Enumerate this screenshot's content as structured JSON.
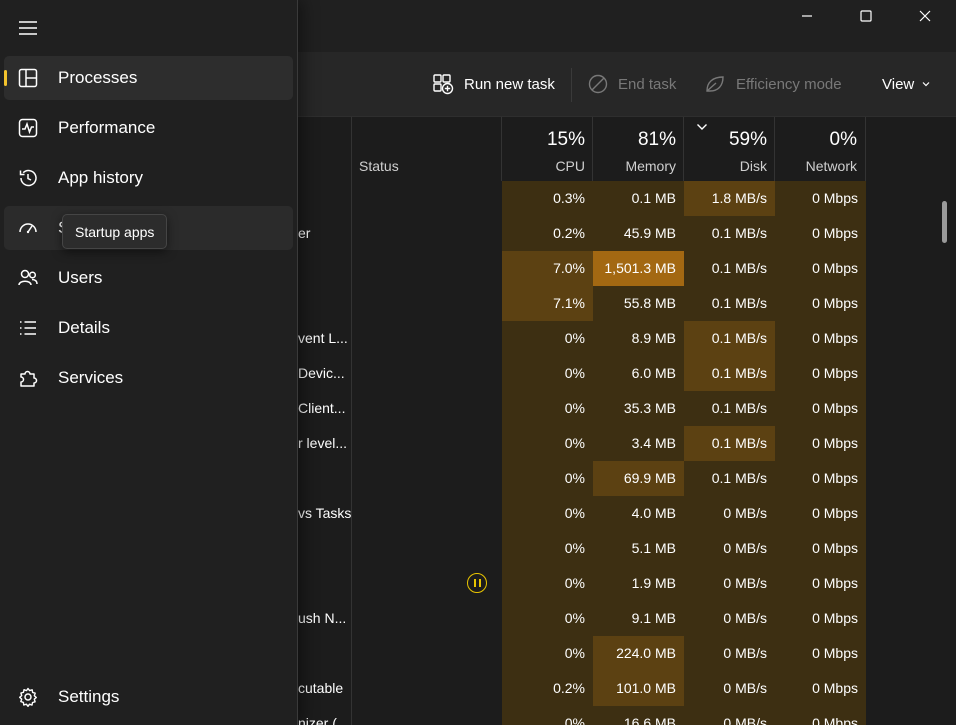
{
  "window": {
    "minimize_icon": "minimize-icon",
    "maximize_icon": "maximize-icon",
    "close_icon": "close-icon"
  },
  "toolbar": {
    "run_new_task": "Run new task",
    "end_task": "End task",
    "efficiency_mode": "Efficiency mode",
    "view": "View"
  },
  "columns": {
    "status": "Status",
    "cpu": {
      "label": "CPU",
      "pct": "15%"
    },
    "memory": {
      "label": "Memory",
      "pct": "81%"
    },
    "disk": {
      "label": "Disk",
      "pct": "59%"
    },
    "network": {
      "label": "Network",
      "pct": "0%"
    }
  },
  "colors": {
    "heat_low": "#3d2f12",
    "heat_med": "#5c4112",
    "heat_high": "#a36812",
    "accent": "#f3c32d",
    "status_paused": "#e8c400"
  },
  "rows": [
    {
      "name": "",
      "cpu": "0.3%",
      "mem": "0.1 MB",
      "disk": "1.8 MB/s",
      "net": "0 Mbps",
      "h": [
        "l",
        "l",
        "m",
        "l"
      ]
    },
    {
      "name": "er",
      "cpu": "0.2%",
      "mem": "45.9 MB",
      "disk": "0.1 MB/s",
      "net": "0 Mbps",
      "h": [
        "l",
        "l",
        "l",
        "l"
      ]
    },
    {
      "name": "",
      "cpu": "7.0%",
      "mem": "1,501.3 MB",
      "disk": "0.1 MB/s",
      "net": "0 Mbps",
      "h": [
        "m",
        "h",
        "l",
        "l"
      ]
    },
    {
      "name": "",
      "cpu": "7.1%",
      "mem": "55.8 MB",
      "disk": "0.1 MB/s",
      "net": "0 Mbps",
      "h": [
        "m",
        "l",
        "l",
        "l"
      ]
    },
    {
      "name": "vent L...",
      "cpu": "0%",
      "mem": "8.9 MB",
      "disk": "0.1 MB/s",
      "net": "0 Mbps",
      "h": [
        "l",
        "l",
        "m",
        "l"
      ]
    },
    {
      "name": "Devic...",
      "cpu": "0%",
      "mem": "6.0 MB",
      "disk": "0.1 MB/s",
      "net": "0 Mbps",
      "h": [
        "l",
        "l",
        "m",
        "l"
      ]
    },
    {
      "name": "Client...",
      "cpu": "0%",
      "mem": "35.3 MB",
      "disk": "0.1 MB/s",
      "net": "0 Mbps",
      "h": [
        "l",
        "l",
        "l",
        "l"
      ]
    },
    {
      "name": "r level...",
      "cpu": "0%",
      "mem": "3.4 MB",
      "disk": "0.1 MB/s",
      "net": "0 Mbps",
      "h": [
        "l",
        "l",
        "m",
        "l"
      ]
    },
    {
      "name": "",
      "cpu": "0%",
      "mem": "69.9 MB",
      "disk": "0.1 MB/s",
      "net": "0 Mbps",
      "h": [
        "l",
        "m",
        "l",
        "l"
      ]
    },
    {
      "name": "vs Tasks",
      "cpu": "0%",
      "mem": "4.0 MB",
      "disk": "0 MB/s",
      "net": "0 Mbps",
      "h": [
        "l",
        "l",
        "l",
        "l"
      ]
    },
    {
      "name": "",
      "cpu": "0%",
      "mem": "5.1 MB",
      "disk": "0 MB/s",
      "net": "0 Mbps",
      "h": [
        "l",
        "l",
        "l",
        "l"
      ]
    },
    {
      "name": "",
      "cpu": "0%",
      "mem": "1.9 MB",
      "disk": "0 MB/s",
      "net": "0 Mbps",
      "h": [
        "l",
        "l",
        "l",
        "l"
      ],
      "paused": true
    },
    {
      "name": "ush N...",
      "cpu": "0%",
      "mem": "9.1 MB",
      "disk": "0 MB/s",
      "net": "0 Mbps",
      "h": [
        "l",
        "l",
        "l",
        "l"
      ]
    },
    {
      "name": "",
      "cpu": "0%",
      "mem": "224.0 MB",
      "disk": "0 MB/s",
      "net": "0 Mbps",
      "h": [
        "l",
        "m",
        "l",
        "l"
      ]
    },
    {
      "name": "cutable",
      "cpu": "0.2%",
      "mem": "101.0 MB",
      "disk": "0 MB/s",
      "net": "0 Mbps",
      "h": [
        "l",
        "m",
        "l",
        "l"
      ]
    },
    {
      "name": "nizer (",
      "cpu": "0%",
      "mem": "16.6 MB",
      "disk": "0 MB/s",
      "net": "0 Mbps",
      "h": [
        "l",
        "l",
        "l",
        "l"
      ]
    }
  ],
  "nav": {
    "menu_icon": "hamburger-icon",
    "items": [
      {
        "label": "Processes",
        "icon": "processes-icon",
        "state": "active"
      },
      {
        "label": "Performance",
        "icon": "performance-icon",
        "state": ""
      },
      {
        "label": "App history",
        "icon": "history-icon",
        "state": ""
      },
      {
        "label": "S",
        "icon": "startup-gauge-icon",
        "state": "hover"
      },
      {
        "label": "Users",
        "icon": "users-icon",
        "state": ""
      },
      {
        "label": "Details",
        "icon": "details-list-icon",
        "state": ""
      },
      {
        "label": "Services",
        "icon": "services-puzzle-icon",
        "state": ""
      }
    ],
    "settings": {
      "label": "Settings",
      "icon": "settings-gear-icon"
    },
    "tooltip": "Startup apps"
  }
}
